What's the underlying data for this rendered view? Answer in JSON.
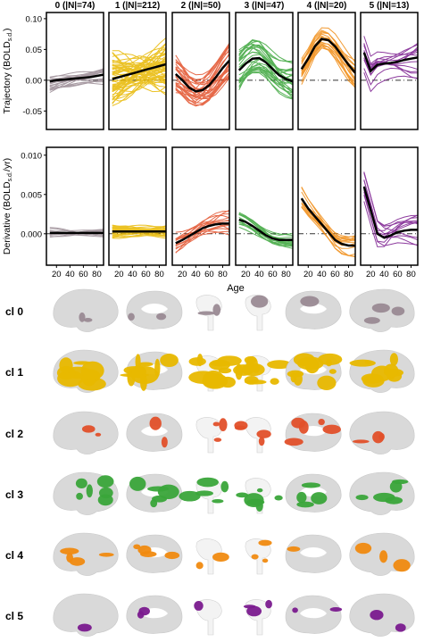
{
  "figure": {
    "panels": [
      {
        "id": "0",
        "title": "0 (|N|=74)",
        "color": "#9a8a94"
      },
      {
        "id": "1",
        "title": "1 (|N|=212)",
        "color": "#e8b800"
      },
      {
        "id": "2",
        "title": "2 (|N|=50)",
        "color": "#e2502a"
      },
      {
        "id": "3",
        "title": "3 (|N|=47)",
        "color": "#3aa53a"
      },
      {
        "id": "4",
        "title": "4 (|N|=20)",
        "color": "#f08a10"
      },
      {
        "id": "5",
        "title": "5 (|N|=13)",
        "color": "#7a1a8e"
      }
    ],
    "top_ylabel": "Trajectory (BOLD",
    "top_ylabel_sub": "s.d.",
    "top_ylabel_end": ")",
    "bottom_ylabel": "Derivative (BOLD",
    "bottom_ylabel_sub": "s.d.",
    "bottom_ylabel_end": "/yr)",
    "xlabel": "Age",
    "top_yticks": [
      "0.10",
      "0.05",
      "0.00",
      "-0.05"
    ],
    "bottom_yticks": [
      "0.010",
      "0.005",
      "0.000"
    ],
    "xticks": [
      "20",
      "40",
      "60",
      "80"
    ],
    "cluster_labels": [
      "cl 0",
      "cl 1",
      "cl 2",
      "cl 3",
      "cl 4",
      "cl 5"
    ]
  },
  "chart_data": [
    {
      "type": "line",
      "title": "Trajectory",
      "x": [
        10,
        20,
        30,
        40,
        50,
        60,
        70,
        80,
        90
      ],
      "ylim": [
        -0.08,
        0.11
      ],
      "series": [
        {
          "values": [
            -0.002,
            0.0,
            0.001,
            0.002,
            0.003,
            0.004,
            0.005,
            0.007,
            0.009
          ]
        },
        {
          "values": [
            0.002,
            0.005,
            0.008,
            0.011,
            0.014,
            0.017,
            0.02,
            0.023,
            0.026
          ]
        },
        {
          "values": [
            0.01,
            0.0,
            -0.012,
            -0.018,
            -0.016,
            -0.008,
            0.005,
            0.02,
            0.032
          ]
        },
        {
          "values": [
            0.016,
            0.027,
            0.035,
            0.036,
            0.029,
            0.018,
            0.008,
            0.002,
            -0.002
          ]
        },
        {
          "values": [
            0.018,
            0.035,
            0.055,
            0.067,
            0.065,
            0.055,
            0.04,
            0.025,
            0.012
          ]
        },
        {
          "values": [
            0.045,
            0.015,
            0.025,
            0.027,
            0.028,
            0.03,
            0.033,
            0.035,
            0.037
          ]
        }
      ]
    },
    {
      "type": "line",
      "title": "Derivative",
      "x": [
        10,
        20,
        30,
        40,
        50,
        60,
        70,
        80,
        90
      ],
      "ylim": [
        -0.004,
        0.011
      ],
      "series": [
        {
          "values": [
            0.0001,
            0.0001,
            0.0001,
            0.0001,
            0.0001,
            0.0001,
            0.0001,
            0.0001,
            0.0001
          ]
        },
        {
          "values": [
            0.0003,
            0.0003,
            0.0003,
            0.0003,
            0.0003,
            0.0003,
            0.0003,
            0.0003,
            0.0003
          ]
        },
        {
          "values": [
            -0.0012,
            -0.0008,
            -0.0003,
            0.0002,
            0.0007,
            0.001,
            0.0012,
            0.0013,
            0.0013
          ]
        },
        {
          "values": [
            0.0018,
            0.0015,
            0.001,
            0.0004,
            -0.0002,
            -0.0006,
            -0.0008,
            -0.0008,
            -0.0008
          ]
        },
        {
          "values": [
            0.0045,
            0.0032,
            0.0022,
            0.0012,
            0.0002,
            -0.0008,
            -0.0013,
            -0.0015,
            -0.0015
          ]
        },
        {
          "values": [
            0.006,
            0.003,
            0.0,
            -0.0005,
            -0.0002,
            0.0002,
            0.0004,
            0.0005,
            0.0005
          ]
        }
      ]
    }
  ]
}
